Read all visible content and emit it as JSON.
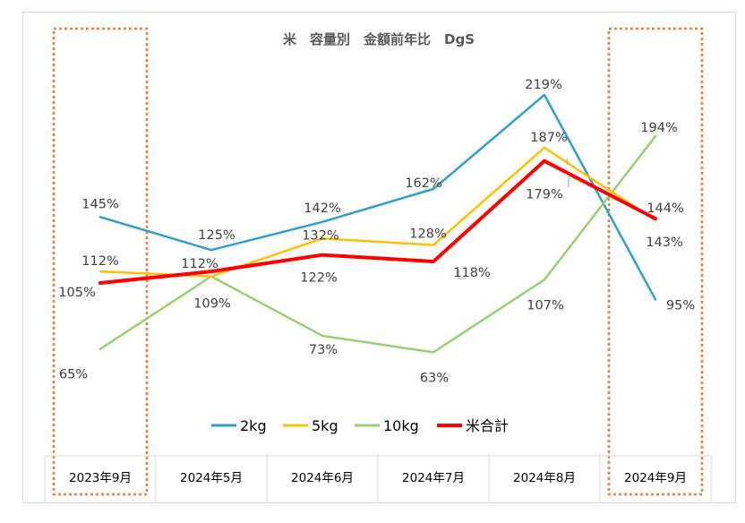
{
  "chart_data": {
    "type": "line",
    "title": "米　容量別　金額前年比　DgS",
    "categories": [
      "2023年9月",
      "2024年5月",
      "2024年6月",
      "2024年7月",
      "2024年8月",
      "2024年9月"
    ],
    "ylim": [
      50,
      240
    ],
    "value_unit": "%",
    "grid": false,
    "legend_position": "bottom",
    "highlight_categories": [
      "2023年9月",
      "2024年9月"
    ],
    "highlight_color": "#ed7d31",
    "series": [
      {
        "name": "2kg",
        "color": "#2e9fd0",
        "width": 2.5,
        "values": [
          145,
          125,
          142,
          162,
          219,
          95
        ],
        "labels": [
          "145%",
          "125%",
          "142%",
          "162%",
          "219%",
          "95%"
        ]
      },
      {
        "name": "5kg",
        "color": "#ffc000",
        "width": 2.5,
        "values": [
          112,
          109,
          132,
          128,
          187,
          143
        ],
        "labels": [
          "112%",
          "",
          "132%",
          "128%",
          "187%",
          "143%"
        ]
      },
      {
        "name": "10kg",
        "color": "#92d36e",
        "width": 2.5,
        "values": [
          65,
          109,
          73,
          63,
          107,
          194
        ],
        "labels": [
          "65%",
          "109%",
          "73%",
          "63%",
          "107%",
          "194%"
        ]
      },
      {
        "name": "米合計",
        "color": "#ff0000",
        "width": 4,
        "values": [
          105,
          112,
          122,
          118,
          179,
          144
        ],
        "labels": [
          "105%",
          "112%",
          "122%",
          "118%",
          "179%",
          "144%"
        ]
      }
    ]
  }
}
